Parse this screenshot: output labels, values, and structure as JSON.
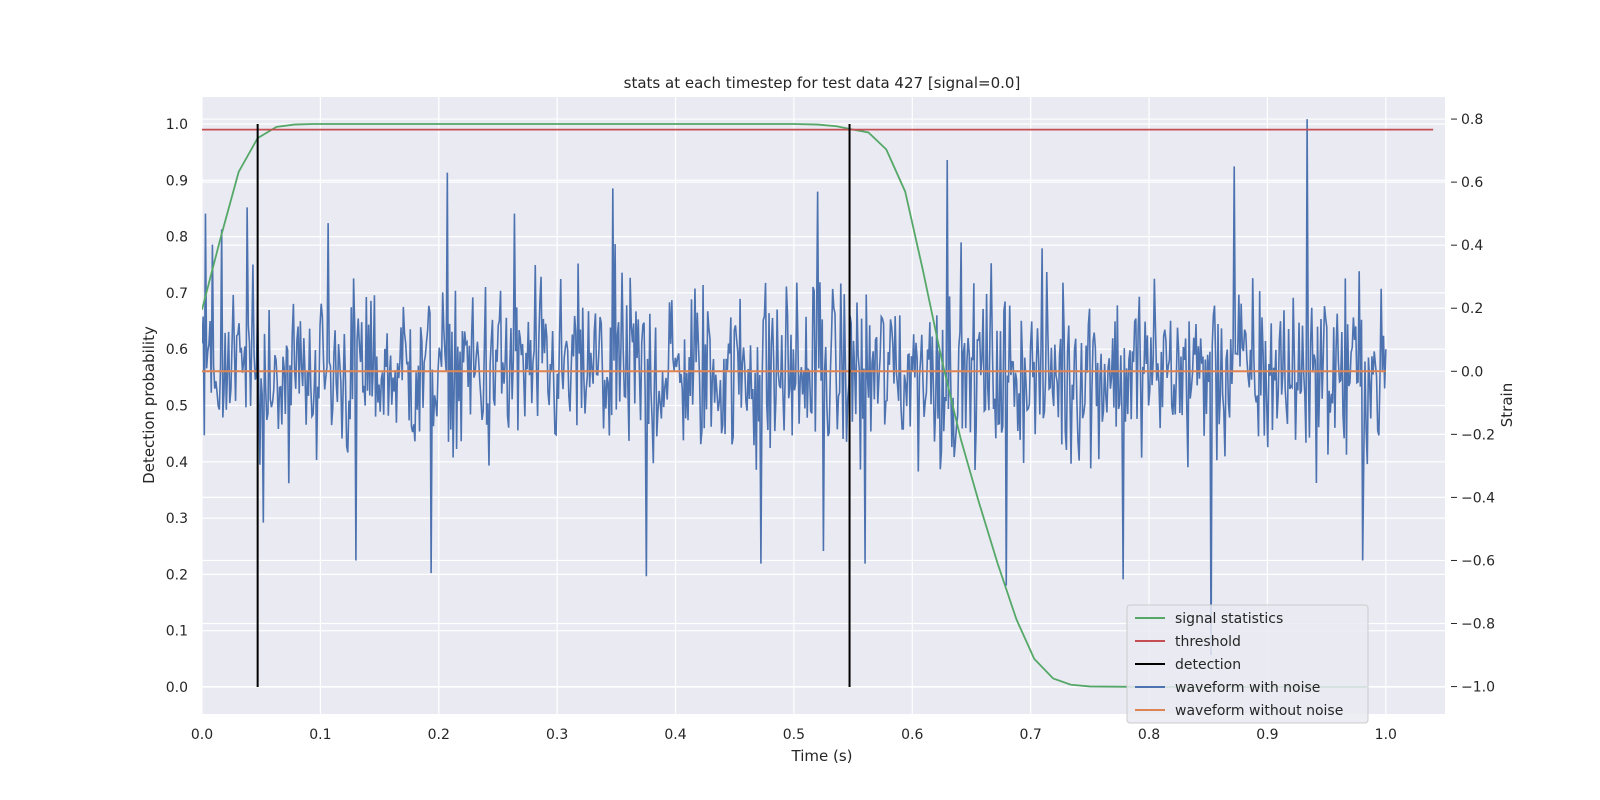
{
  "chart_data": {
    "type": "line",
    "title": "stats at each timestep for test data 427 [signal=0.0]",
    "xlabel": "Time (s)",
    "ylabel": "Detection probability",
    "y2label": "Strain",
    "xlim": [
      0.0,
      1.05
    ],
    "ylim": [
      -0.048,
      1.048
    ],
    "y2lim": [
      -1.087,
      0.87
    ],
    "x_ticks": [
      "0.0",
      "0.1",
      "0.2",
      "0.3",
      "0.4",
      "0.5",
      "0.6",
      "0.7",
      "0.8",
      "0.9",
      "1.0"
    ],
    "y_ticks": [
      "0.0",
      "0.1",
      "0.2",
      "0.3",
      "0.4",
      "0.5",
      "0.6",
      "0.7",
      "0.8",
      "0.9",
      "1.0"
    ],
    "y2_ticks": [
      "−1.0",
      "−0.8",
      "−0.6",
      "−0.4",
      "−0.2",
      "0.0",
      "0.2",
      "0.4",
      "0.6",
      "0.8"
    ],
    "grid": true,
    "legend_position": "lower right",
    "colors": {
      "signal_statistics": "#55a868",
      "threshold": "#c44e52",
      "detection": "#000000",
      "waveform_with_noise": "#4c72b0",
      "waveform_without_noise": "#dd8452",
      "background": "#eaeaf2",
      "grid": "#ffffff"
    },
    "series": [
      {
        "name": "signal statistics",
        "axis": "left",
        "x": [
          0.0,
          0.016,
          0.031,
          0.047,
          0.063,
          0.078,
          0.094,
          0.2,
          0.3,
          0.4,
          0.5,
          0.52,
          0.536,
          0.55,
          0.563,
          0.578,
          0.594,
          0.609,
          0.625,
          0.641,
          0.656,
          0.672,
          0.688,
          0.703,
          0.719,
          0.734,
          0.75,
          0.8,
          0.9,
          0.984
        ],
        "y": [
          0.67,
          0.8,
          0.915,
          0.975,
          0.995,
          0.999,
          1.0,
          1.0,
          1.0,
          1.0,
          1.0,
          0.999,
          0.996,
          0.99,
          0.985,
          0.955,
          0.88,
          0.74,
          0.58,
          0.44,
          0.33,
          0.22,
          0.12,
          0.05,
          0.015,
          0.004,
          0.001,
          0.0,
          0.0,
          0.0
        ]
      },
      {
        "name": "threshold",
        "axis": "left",
        "x": [
          0.0,
          1.04
        ],
        "y": [
          0.99,
          0.99
        ]
      },
      {
        "name": "detection",
        "axis": "left",
        "segments": [
          {
            "x": 0.047,
            "y0": 0.0,
            "y1": 1.0
          },
          {
            "x": 0.547,
            "y0": 0.0,
            "y1": 1.0
          }
        ]
      },
      {
        "name": "waveform with noise",
        "axis": "right",
        "x_range": [
          0.0,
          1.0
        ],
        "sample_count": 1024,
        "envelope": [
          -0.9,
          0.8
        ],
        "peaks": [
          {
            "x": 0.003,
            "y": 0.5
          },
          {
            "x": 0.017,
            "y": 0.45
          },
          {
            "x": 0.038,
            "y": 0.52
          },
          {
            "x": 0.052,
            "y": -0.48
          },
          {
            "x": 0.107,
            "y": 0.47
          },
          {
            "x": 0.13,
            "y": -0.6
          },
          {
            "x": 0.194,
            "y": -0.64
          },
          {
            "x": 0.207,
            "y": 0.63
          },
          {
            "x": 0.264,
            "y": 0.5
          },
          {
            "x": 0.347,
            "y": 0.58
          },
          {
            "x": 0.375,
            "y": -0.65
          },
          {
            "x": 0.472,
            "y": -0.61
          },
          {
            "x": 0.52,
            "y": 0.57
          },
          {
            "x": 0.525,
            "y": -0.57
          },
          {
            "x": 0.56,
            "y": -0.61
          },
          {
            "x": 0.63,
            "y": 0.67
          },
          {
            "x": 0.679,
            "y": -0.68
          },
          {
            "x": 0.778,
            "y": -0.66
          },
          {
            "x": 0.852,
            "y": -0.9
          },
          {
            "x": 0.872,
            "y": 0.65
          },
          {
            "x": 0.934,
            "y": 0.8
          },
          {
            "x": 0.98,
            "y": -0.6
          }
        ]
      },
      {
        "name": "waveform without noise",
        "axis": "right",
        "x": [
          0.0,
          1.0
        ],
        "y": [
          0.0,
          0.0
        ]
      }
    ]
  }
}
